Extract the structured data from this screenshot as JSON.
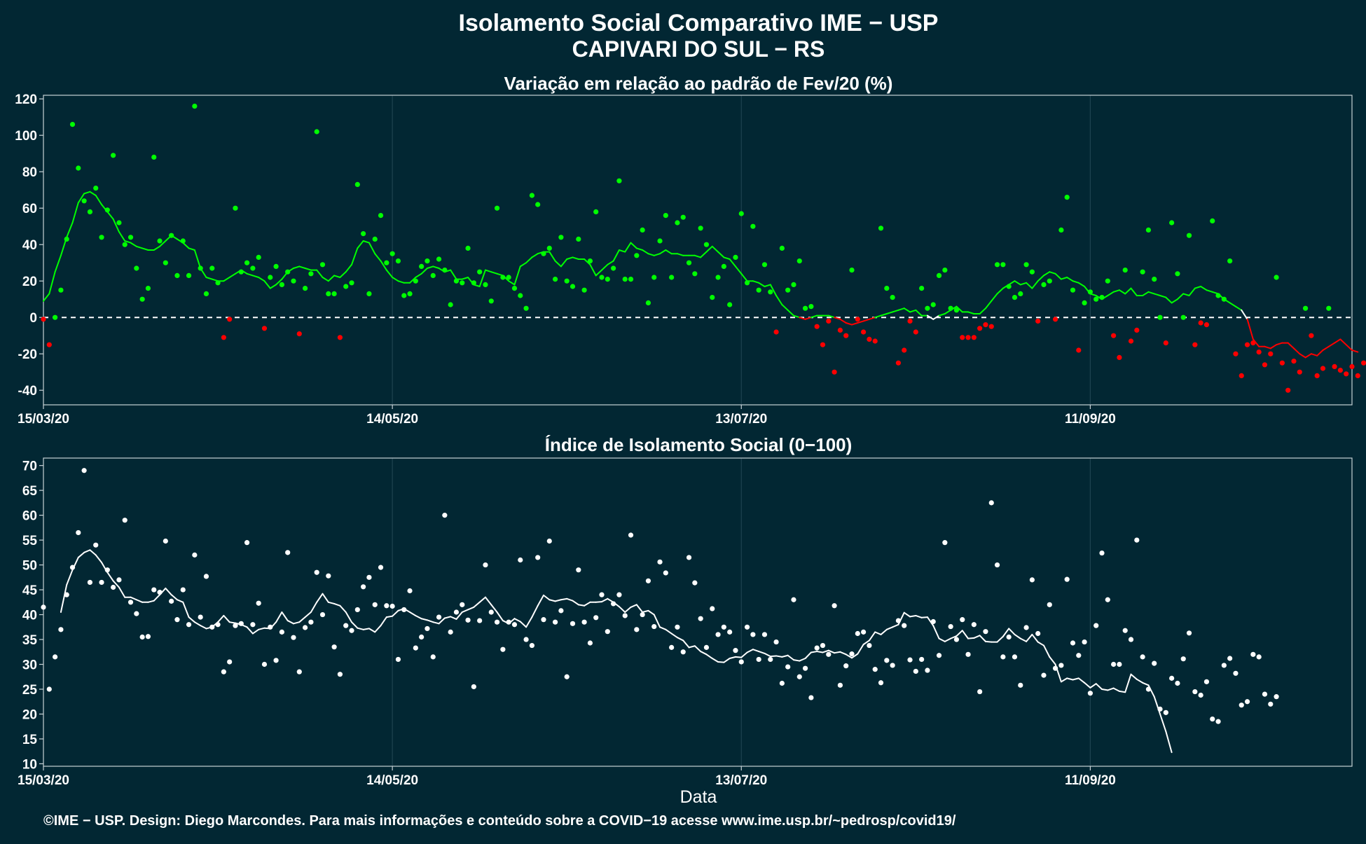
{
  "title_line1": "Isolamento Social Comparativo IME − USP",
  "title_line2": "CAPIVARI DO SUL − RS",
  "xlabel": "Data",
  "footer": "©IME − USP. Design: Diego Marcondes. Para mais informações e conteúdo sobre a COVID−19 acesse www.ime.usp.br/~pedrosp/covid19/",
  "colors": {
    "background": "#022733",
    "panel_border": "#c8d2d6",
    "grid": "#1e4350",
    "positive": "#00ff00",
    "negative": "#ff0000",
    "neutral": "#ffffff",
    "text": "#ffffff"
  },
  "chart_data": [
    {
      "type": "scatter",
      "title": "Variação em relação ao padrão de Fev/20 (%)",
      "x_start": "2020-03-15",
      "x_ticks": [
        "15/03/20",
        "14/05/20",
        "13/07/20",
        "11/09/20"
      ],
      "x_tick_offsets": [
        0,
        60,
        120,
        180
      ],
      "xlim": [
        0,
        225
      ],
      "ylim": [
        -48,
        122
      ],
      "y_ticks": [
        -40,
        -20,
        0,
        20,
        40,
        60,
        80,
        100,
        120
      ],
      "reference_line": 0,
      "grid": true,
      "points": [
        -1,
        -15,
        0,
        15,
        43,
        106,
        82,
        64,
        58,
        71,
        44,
        59,
        89,
        52,
        40,
        44,
        27,
        10,
        16,
        88,
        42,
        30,
        45,
        23,
        42,
        23,
        116,
        27,
        13,
        27,
        19,
        -11,
        -1,
        60,
        25,
        30,
        27,
        33,
        -6,
        22,
        28,
        18,
        25,
        20,
        -9,
        16,
        24,
        102,
        29,
        13,
        13,
        -11,
        17,
        19,
        73,
        46,
        13,
        43,
        56,
        30,
        35,
        31,
        12,
        13,
        20,
        28,
        31,
        23,
        32,
        26,
        7,
        20,
        19,
        38,
        19,
        25,
        18,
        9,
        60,
        22,
        22,
        16,
        12,
        5,
        67,
        62,
        35,
        38,
        21,
        44,
        20,
        17,
        43,
        15,
        31,
        58,
        22,
        21,
        27,
        75,
        21,
        21,
        34,
        48,
        8,
        22,
        42,
        56,
        22,
        52,
        55,
        30,
        24,
        49,
        40,
        11,
        22,
        28,
        7,
        33,
        57,
        19,
        50,
        15,
        29,
        14,
        -8,
        38,
        15,
        18,
        31,
        5,
        6,
        -5,
        -15,
        -2,
        -30,
        -7,
        -10,
        26,
        -1,
        -8,
        -12,
        -13,
        49,
        16,
        11,
        -25,
        -18,
        -2,
        -8,
        16,
        5,
        7,
        23,
        26,
        5,
        4,
        -11,
        -11,
        -11,
        -6,
        -4,
        -5,
        29,
        29,
        17,
        11,
        13,
        29,
        25,
        -2,
        18,
        20,
        -1,
        48,
        66,
        15,
        -18,
        8,
        14,
        10,
        11,
        20,
        -10,
        -22,
        26,
        -13,
        -7,
        25,
        48,
        21,
        0,
        -14,
        52,
        24,
        0,
        45,
        -15,
        -3,
        -4,
        53,
        12,
        10,
        31,
        -20,
        -32,
        -15,
        -14,
        -19,
        -26,
        -20,
        22,
        -25,
        -40,
        -24,
        -30,
        5,
        -10,
        -32,
        -28,
        5,
        -27,
        -29,
        -31,
        -27,
        -32,
        -25
      ],
      "moving_average": [
        9,
        13,
        25,
        34,
        44,
        52,
        63,
        68,
        69,
        67,
        62,
        58,
        54,
        47,
        42,
        41,
        39,
        38,
        37,
        37,
        39,
        42,
        45,
        43,
        41,
        38,
        37,
        27,
        22,
        21,
        20,
        20,
        22,
        24,
        26,
        24,
        23,
        22,
        20,
        16,
        18,
        21,
        25,
        27,
        28,
        27,
        26,
        26,
        22,
        20,
        23,
        22,
        25,
        29,
        38,
        42,
        41,
        35,
        31,
        26,
        22,
        20,
        19,
        19,
        22,
        24,
        27,
        28,
        27,
        25,
        26,
        21,
        21,
        22,
        18,
        17,
        26,
        25,
        24,
        23,
        20,
        18,
        28,
        30,
        33,
        35,
        36,
        36,
        31,
        28,
        32,
        33,
        32,
        32,
        29,
        23,
        26,
        29,
        31,
        37,
        36,
        41,
        38,
        37,
        35,
        34,
        35,
        37,
        35,
        35,
        34,
        34,
        34,
        33,
        36,
        39,
        36,
        33,
        32,
        28,
        24,
        20,
        20,
        19,
        17,
        18,
        12,
        7,
        4,
        1,
        0,
        -1,
        0,
        1,
        1,
        1,
        0,
        -1,
        -3,
        -4,
        -3,
        -2,
        -1,
        0,
        1,
        2,
        3,
        4,
        5,
        3,
        4,
        1,
        1,
        -1,
        1,
        2,
        4,
        6,
        3,
        3,
        2,
        2,
        5,
        9,
        13,
        16,
        18,
        20,
        18,
        19,
        16,
        20,
        23,
        25,
        24,
        21,
        22,
        20,
        19,
        17,
        13,
        12,
        10,
        12,
        14,
        15,
        13,
        16,
        12,
        12,
        14,
        13,
        12,
        11,
        8,
        10,
        13,
        12,
        16,
        17,
        15,
        14,
        13,
        10,
        8,
        6,
        4,
        -1,
        -12,
        -16,
        -16,
        -17,
        -15,
        -14,
        -14,
        -17,
        -20,
        -22,
        -20,
        -21,
        -18,
        -16,
        -14,
        -12,
        -15,
        -18,
        -19
      ]
    },
    {
      "type": "scatter",
      "title": "Índice de Isolamento Social (0−100)",
      "x_start": "2020-03-15",
      "x_ticks": [
        "15/03/20",
        "14/05/20",
        "13/07/20",
        "11/09/20"
      ],
      "x_tick_offsets": [
        0,
        60,
        120,
        180
      ],
      "xlim": [
        0,
        225
      ],
      "ylim": [
        9.5,
        71.5
      ],
      "y_ticks": [
        10,
        15,
        20,
        25,
        30,
        35,
        40,
        45,
        50,
        55,
        60,
        65,
        70
      ],
      "grid": true,
      "points": [
        41.5,
        25,
        31.5,
        37,
        44,
        49.5,
        56.5,
        69,
        46.5,
        54,
        46.5,
        49,
        45.5,
        47,
        59,
        42.5,
        40.2,
        35.5,
        35.6,
        45,
        44.5,
        54.8,
        42.7,
        39,
        45,
        38,
        52,
        39.5,
        47.7,
        37.5,
        38,
        28.5,
        30.5,
        37.8,
        38.2,
        54.5,
        38,
        42.3,
        30,
        37.5,
        30.8,
        36.5,
        52.5,
        35.4,
        28.5,
        37.4,
        38.5,
        48.5,
        40,
        47.8,
        33.5,
        28,
        37.8,
        36.8,
        41,
        45.6,
        47.5,
        42,
        49.5,
        41.8,
        41.7,
        31,
        41,
        44.8,
        33.3,
        35.5,
        37.2,
        31.5,
        39.5,
        60,
        36.5,
        40.5,
        42,
        38.9,
        25.5,
        38.8,
        50,
        40.5,
        38.5,
        33,
        38.5,
        38,
        51,
        35,
        33.8,
        51.5,
        39,
        54.8,
        38.5,
        40.8,
        27.5,
        38.2,
        49,
        38.5,
        34.3,
        39.4,
        44,
        36.6,
        42.2,
        44,
        39.8,
        56,
        37,
        40,
        46.8,
        37.6,
        50.6,
        48.4,
        33.4,
        37.5,
        32.5,
        51.5,
        46.4,
        39.2,
        33.4,
        41.2,
        36,
        37.5,
        36.5,
        32.8,
        30.5,
        37.5,
        36,
        31,
        36,
        31,
        34.5,
        26.2,
        29.5,
        43,
        27.5,
        29.2,
        23.3,
        33.3,
        33.8,
        32,
        41.8,
        25.8,
        29.7,
        32.1,
        36.2,
        36.5,
        33.8,
        29,
        26.3,
        30.8,
        29.8,
        38.8,
        37.8,
        30.9,
        28.6,
        31,
        28.8,
        38.6,
        31.8,
        54.5,
        37.6,
        35,
        39,
        32,
        38,
        24.5,
        36.6,
        62.5,
        50,
        31.5,
        35.5,
        31.5,
        25.8,
        37.4,
        47,
        36.2,
        27.8,
        42,
        29.2,
        29.8,
        47.1,
        34.3,
        31.8,
        34.5,
        24.2,
        37.8,
        52.4,
        43,
        30,
        30,
        36.8,
        35,
        55,
        31.5,
        25,
        30.2,
        21,
        20.3,
        27.2,
        26.2,
        31.1,
        36.3,
        24.5,
        23.8,
        26.5,
        19,
        18.5,
        29.8,
        31.2,
        28.2,
        21.8,
        22.5,
        32,
        31.5,
        24,
        22,
        23.5
      ],
      "moving_average": [
        null,
        null,
        null,
        40.5,
        46,
        49,
        51.5,
        52.5,
        53,
        52,
        50.5,
        48.5,
        46.8,
        45.5,
        43.5,
        43.5,
        43,
        42.5,
        42.5,
        42.8,
        44,
        45.3,
        44,
        43,
        42.5,
        39.5,
        38.5,
        37.8,
        37.2,
        37.5,
        38.5,
        39.8,
        38.5,
        38.3,
        38,
        37.5,
        36.2,
        37,
        37.3,
        37.2,
        38.5,
        40.5,
        38.8,
        38.2,
        38.5,
        39.5,
        40.5,
        42.5,
        44.2,
        42.5,
        42.2,
        41.8,
        40.5,
        38.5,
        37.3,
        37,
        37.2,
        36.5,
        37.8,
        39.5,
        39.7,
        40.8,
        41.2,
        40.5,
        39.8,
        39.2,
        38.9,
        38.5,
        38.2,
        39.3,
        39.6,
        39.1,
        40.5,
        41,
        41.5,
        42.5,
        43.5,
        42,
        40.5,
        38.8,
        38.2,
        39.2,
        38.6,
        37.5,
        39.5,
        41.8,
        43.9,
        43,
        42.7,
        43,
        43.2,
        42.8,
        42,
        41.8,
        42.5,
        42.5,
        42.6,
        43.2,
        42.5,
        41.6,
        40.5,
        41.5,
        42,
        40.5,
        40.8,
        40,
        37.5,
        37,
        36.2,
        35.4,
        34.8,
        33.4,
        33.7,
        32.6,
        32,
        31.2,
        30.5,
        30.4,
        31.2,
        31.5,
        31.4,
        32.4,
        33,
        32.6,
        32.2,
        31.6,
        31.7,
        31.5,
        31.8,
        30.9,
        30.7,
        31.2,
        32.4,
        32.6,
        32.4,
        32.8,
        32.3,
        32.5,
        32,
        31.3,
        32.1,
        34,
        34.8,
        36.5,
        36,
        37,
        37.5,
        38,
        40.4,
        39.6,
        39.8,
        39.4,
        39.5,
        37.8,
        35.2,
        34.6,
        35.2,
        35.7,
        36.8,
        35.2,
        35.3,
        35.8,
        34.6,
        34.5,
        34.5,
        35.6,
        37.2,
        36,
        35.2,
        34.6,
        36,
        34.5,
        33.8,
        31.5,
        30,
        26.5,
        27.2,
        26.9,
        27.2,
        26.3,
        25.3,
        26.1,
        25,
        24.8,
        25.2,
        24.6,
        24.4,
        28,
        27,
        26.3,
        25.8,
        23.5,
        20,
        16.5,
        12.3
      ]
    }
  ]
}
